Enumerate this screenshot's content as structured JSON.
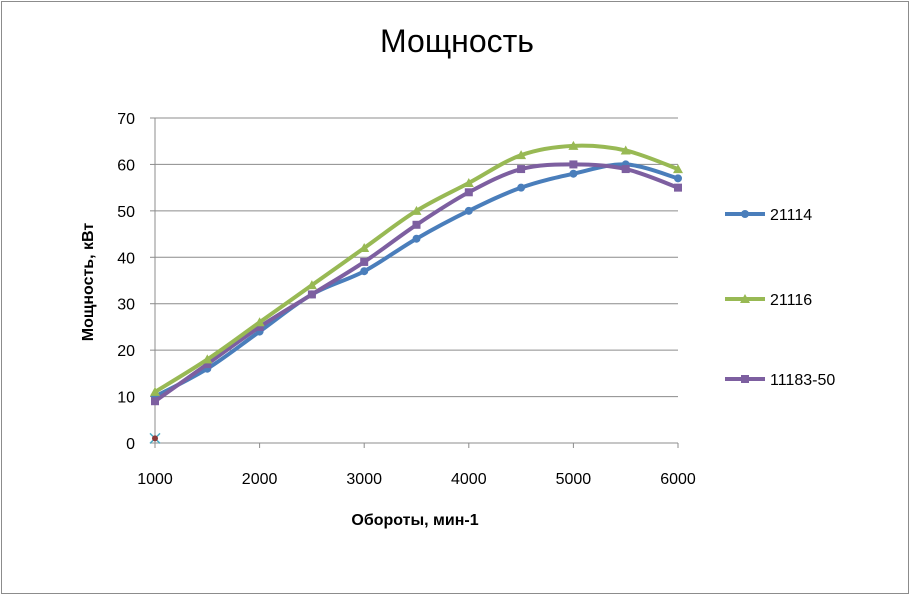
{
  "chart_data": {
    "type": "line",
    "title": "Мощность",
    "xlabel": "Обороты, мин-1",
    "ylabel": "Мощность, кВт",
    "xlim": [
      1000,
      6000
    ],
    "ylim": [
      0,
      70
    ],
    "xticks": [
      1000,
      2000,
      3000,
      4000,
      5000,
      6000
    ],
    "yticks": [
      0,
      10,
      20,
      30,
      40,
      50,
      60,
      70
    ],
    "x": [
      1000,
      1500,
      2000,
      2500,
      3000,
      3500,
      4000,
      4500,
      5000,
      5500,
      6000
    ],
    "grid": true,
    "legend_position": "right",
    "series": [
      {
        "name": "21114",
        "color": "#4a7ebb",
        "marker": "circle",
        "values": [
          10,
          16,
          24,
          32,
          37,
          44,
          50,
          55,
          58,
          60,
          57
        ]
      },
      {
        "name": "21116",
        "color": "#98b954",
        "marker": "triangle",
        "values": [
          11,
          18,
          26,
          34,
          42,
          50,
          56,
          62,
          64,
          63,
          59
        ]
      },
      {
        "name": "11183-50",
        "color": "#7d5fa0",
        "marker": "square",
        "values": [
          9,
          17,
          25,
          32,
          39,
          47,
          54,
          59,
          60,
          59,
          55
        ]
      }
    ],
    "stray_point": {
      "x": 1000,
      "y": 1
    }
  }
}
